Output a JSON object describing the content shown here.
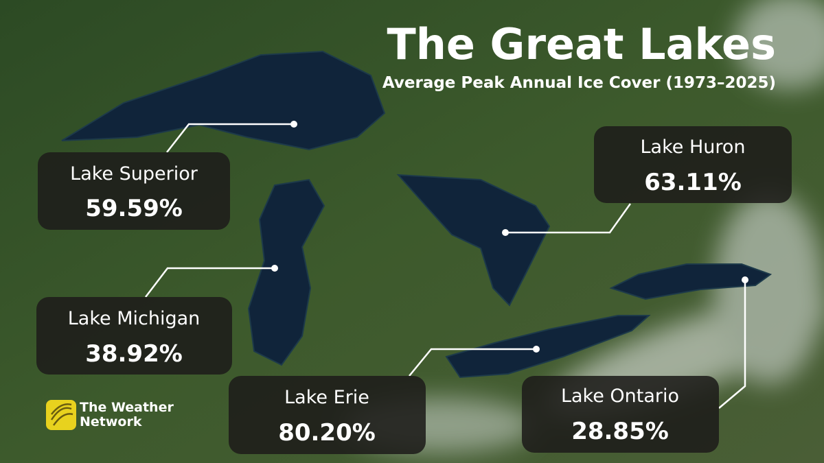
{
  "title": "The Great Lakes",
  "subtitle": "Average Peak Annual Ice Cover (1973–2025)",
  "lakes": [
    {
      "name": "Lake Superior",
      "value": "59.59%"
    },
    {
      "name": "Lake Huron",
      "value": "63.11%"
    },
    {
      "name": "Lake Michigan",
      "value": "38.92%"
    },
    {
      "name": "Lake Erie",
      "value": "80.20%"
    },
    {
      "name": "Lake Ontario",
      "value": "28.85%"
    }
  ],
  "logo": {
    "line1": "The Weather",
    "line2": "Network"
  }
}
